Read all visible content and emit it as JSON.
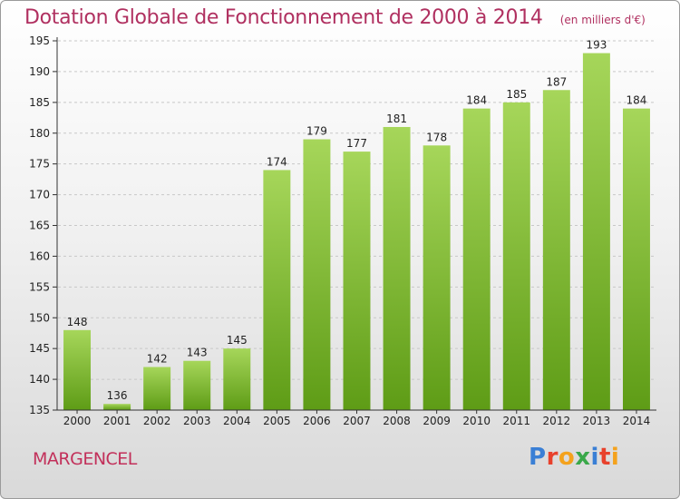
{
  "header": {
    "title": "Dotation Globale de Fonctionnement de 2000 à 2014",
    "unit": "(en milliers d'€)"
  },
  "footer": {
    "commune": "MARGENCEL",
    "logo_text": "Proxiti"
  },
  "colors": {
    "title": "#b03060",
    "bar_top": "#a6d65a",
    "bar_bottom": "#5e9c16",
    "axis": "#333333"
  },
  "chart_data": {
    "type": "bar",
    "title": "Dotation Globale de Fonctionnement de 2000 à 2014",
    "xlabel": "",
    "ylabel": "",
    "categories": [
      "2000",
      "2001",
      "2002",
      "2003",
      "2004",
      "2005",
      "2006",
      "2007",
      "2008",
      "2009",
      "2010",
      "2011",
      "2012",
      "2013",
      "2014"
    ],
    "values": [
      148,
      136,
      142,
      143,
      145,
      174,
      179,
      177,
      181,
      178,
      184,
      185,
      187,
      193,
      184
    ],
    "ylim": [
      135,
      195
    ],
    "yticks": [
      135,
      140,
      145,
      150,
      155,
      160,
      165,
      170,
      175,
      180,
      185,
      190,
      195
    ],
    "grid": true,
    "data_labels": true
  }
}
